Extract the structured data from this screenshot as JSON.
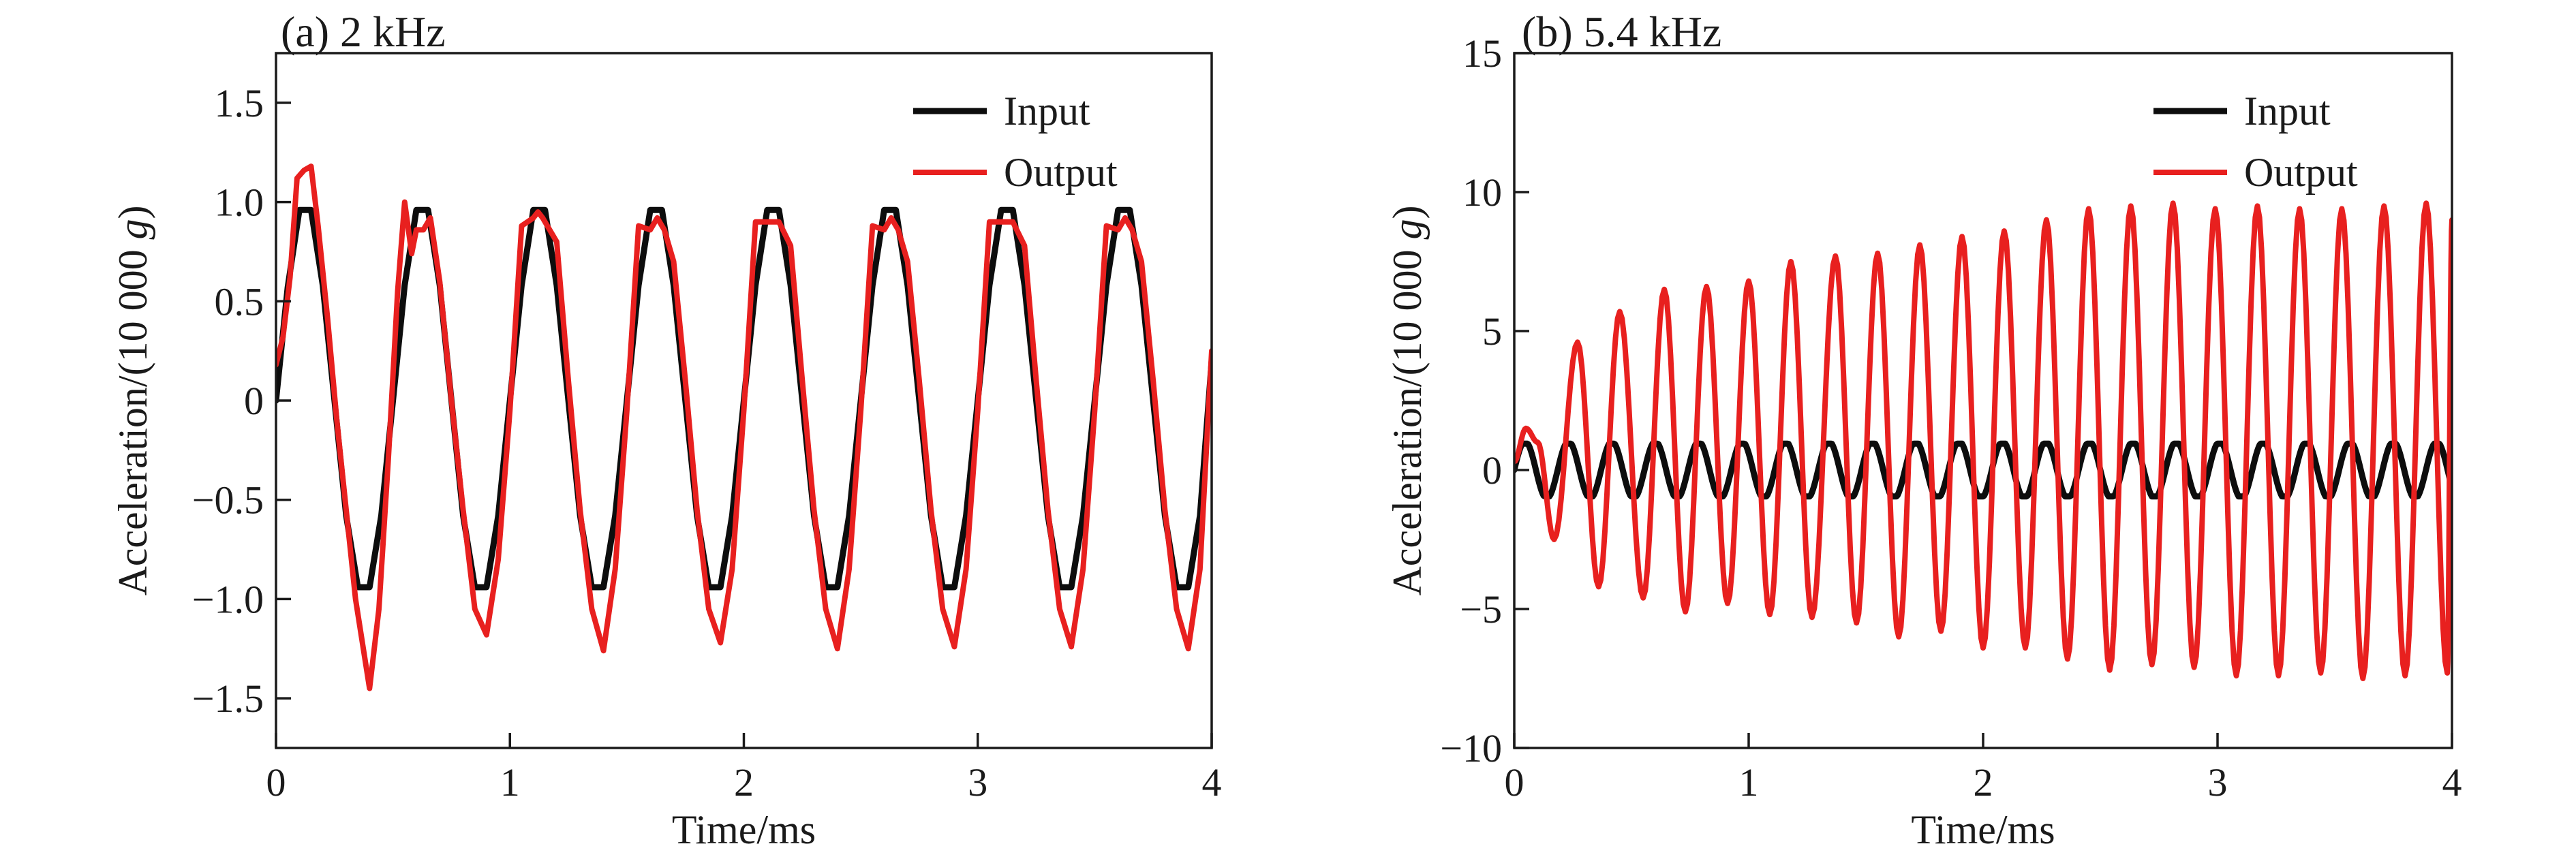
{
  "colors": {
    "input": "#0d0d0d",
    "output": "#e8201f",
    "axis": "#1a1a1a",
    "background": "#ffffff"
  },
  "chart_data": [
    {
      "type": "line",
      "title": "(a) 2 kHz",
      "xlabel": "Time/ms",
      "ylabel": "Acceleration/(10 000 g)",
      "ylabel_prefix": "Acceleration/(10 000 ",
      "ylabel_unit": "g",
      "ylabel_suffix": ")",
      "xlim": [
        0,
        4
      ],
      "ylim": [
        -1.75,
        1.75
      ],
      "xticks": [
        0,
        1,
        2,
        3,
        4
      ],
      "xtick_labels": [
        "0",
        "1",
        "2",
        "3",
        "4"
      ],
      "yticks": [
        -1.5,
        -1.0,
        -0.5,
        0,
        0.5,
        1.0,
        1.5
      ],
      "ytick_labels": [
        "−1.5",
        "−1.0",
        "−0.5",
        "0",
        "0.5",
        "1.0",
        "1.5"
      ],
      "legend_position": "top-right",
      "grid": false,
      "series": [
        {
          "name": "Input",
          "color": "#0d0d0d",
          "points": [
            [
              0.0,
              0.0
            ],
            [
              0.05,
              0.57
            ],
            [
              0.1,
              0.96
            ],
            [
              0.15,
              0.96
            ],
            [
              0.2,
              0.58
            ],
            [
              0.25,
              0.0
            ],
            [
              0.3,
              -0.58
            ],
            [
              0.35,
              -0.94
            ],
            [
              0.4,
              -0.94
            ],
            [
              0.45,
              -0.58
            ],
            [
              0.5,
              0.0
            ],
            [
              0.55,
              0.58
            ],
            [
              0.6,
              0.96
            ],
            [
              0.65,
              0.96
            ],
            [
              0.7,
              0.58
            ],
            [
              0.75,
              0.0
            ],
            [
              0.8,
              -0.58
            ],
            [
              0.85,
              -0.94
            ],
            [
              0.9,
              -0.94
            ],
            [
              0.95,
              -0.58
            ],
            [
              1.0,
              0.0
            ],
            [
              1.05,
              0.58
            ],
            [
              1.1,
              0.96
            ],
            [
              1.15,
              0.96
            ],
            [
              1.2,
              0.58
            ],
            [
              1.25,
              0.0
            ],
            [
              1.3,
              -0.58
            ],
            [
              1.35,
              -0.94
            ],
            [
              1.4,
              -0.94
            ],
            [
              1.45,
              -0.58
            ],
            [
              1.5,
              0.0
            ],
            [
              1.55,
              0.58
            ],
            [
              1.6,
              0.96
            ],
            [
              1.65,
              0.96
            ],
            [
              1.7,
              0.58
            ],
            [
              1.75,
              0.0
            ],
            [
              1.8,
              -0.58
            ],
            [
              1.85,
              -0.94
            ],
            [
              1.9,
              -0.94
            ],
            [
              1.95,
              -0.58
            ],
            [
              2.0,
              0.0
            ],
            [
              2.05,
              0.58
            ],
            [
              2.1,
              0.96
            ],
            [
              2.15,
              0.96
            ],
            [
              2.2,
              0.58
            ],
            [
              2.25,
              0.0
            ],
            [
              2.3,
              -0.58
            ],
            [
              2.35,
              -0.94
            ],
            [
              2.4,
              -0.94
            ],
            [
              2.45,
              -0.58
            ],
            [
              2.5,
              0.0
            ],
            [
              2.55,
              0.58
            ],
            [
              2.6,
              0.96
            ],
            [
              2.65,
              0.96
            ],
            [
              2.7,
              0.58
            ],
            [
              2.75,
              0.0
            ],
            [
              2.8,
              -0.58
            ],
            [
              2.85,
              -0.94
            ],
            [
              2.9,
              -0.94
            ],
            [
              2.95,
              -0.58
            ],
            [
              3.0,
              0.0
            ],
            [
              3.05,
              0.58
            ],
            [
              3.1,
              0.96
            ],
            [
              3.15,
              0.96
            ],
            [
              3.2,
              0.58
            ],
            [
              3.25,
              0.0
            ],
            [
              3.3,
              -0.58
            ],
            [
              3.35,
              -0.94
            ],
            [
              3.4,
              -0.94
            ],
            [
              3.45,
              -0.58
            ],
            [
              3.5,
              0.0
            ],
            [
              3.55,
              0.58
            ],
            [
              3.6,
              0.96
            ],
            [
              3.65,
              0.96
            ],
            [
              3.7,
              0.58
            ],
            [
              3.75,
              0.0
            ],
            [
              3.8,
              -0.58
            ],
            [
              3.85,
              -0.94
            ],
            [
              3.9,
              -0.94
            ],
            [
              3.95,
              -0.58
            ],
            [
              4.0,
              0.2
            ]
          ]
        },
        {
          "name": "Output",
          "color": "#e8201f",
          "points": [
            [
              0.0,
              0.18
            ],
            [
              0.03,
              0.32
            ],
            [
              0.06,
              0.62
            ],
            [
              0.09,
              1.12
            ],
            [
              0.12,
              1.16
            ],
            [
              0.15,
              1.18
            ],
            [
              0.18,
              0.88
            ],
            [
              0.22,
              0.42
            ],
            [
              0.26,
              -0.1
            ],
            [
              0.3,
              -0.55
            ],
            [
              0.34,
              -1.0
            ],
            [
              0.4,
              -1.45
            ],
            [
              0.44,
              -1.05
            ],
            [
              0.48,
              -0.3
            ],
            [
              0.52,
              0.55
            ],
            [
              0.55,
              1.0
            ],
            [
              0.58,
              0.74
            ],
            [
              0.6,
              0.86
            ],
            [
              0.63,
              0.86
            ],
            [
              0.66,
              0.92
            ],
            [
              0.7,
              0.6
            ],
            [
              0.75,
              0.0
            ],
            [
              0.8,
              -0.55
            ],
            [
              0.85,
              -1.05
            ],
            [
              0.9,
              -1.18
            ],
            [
              0.95,
              -0.8
            ],
            [
              1.0,
              -0.05
            ],
            [
              1.05,
              0.88
            ],
            [
              1.1,
              0.92
            ],
            [
              1.12,
              0.95
            ],
            [
              1.14,
              0.92
            ],
            [
              1.2,
              0.8
            ],
            [
              1.25,
              0.1
            ],
            [
              1.3,
              -0.55
            ],
            [
              1.35,
              -1.05
            ],
            [
              1.4,
              -1.26
            ],
            [
              1.45,
              -0.85
            ],
            [
              1.5,
              -0.05
            ],
            [
              1.55,
              0.88
            ],
            [
              1.6,
              0.86
            ],
            [
              1.63,
              0.92
            ],
            [
              1.66,
              0.86
            ],
            [
              1.7,
              0.7
            ],
            [
              1.75,
              0.1
            ],
            [
              1.8,
              -0.55
            ],
            [
              1.85,
              -1.05
            ],
            [
              1.9,
              -1.22
            ],
            [
              1.95,
              -0.85
            ],
            [
              2.0,
              -0.05
            ],
            [
              2.05,
              0.9
            ],
            [
              2.1,
              0.9
            ],
            [
              2.15,
              0.9
            ],
            [
              2.2,
              0.78
            ],
            [
              2.25,
              0.1
            ],
            [
              2.3,
              -0.55
            ],
            [
              2.35,
              -1.05
            ],
            [
              2.4,
              -1.25
            ],
            [
              2.45,
              -0.85
            ],
            [
              2.5,
              -0.05
            ],
            [
              2.55,
              0.88
            ],
            [
              2.6,
              0.86
            ],
            [
              2.63,
              0.92
            ],
            [
              2.66,
              0.86
            ],
            [
              2.7,
              0.7
            ],
            [
              2.75,
              0.1
            ],
            [
              2.8,
              -0.55
            ],
            [
              2.85,
              -1.05
            ],
            [
              2.9,
              -1.24
            ],
            [
              2.95,
              -0.85
            ],
            [
              3.0,
              -0.05
            ],
            [
              3.05,
              0.9
            ],
            [
              3.1,
              0.9
            ],
            [
              3.15,
              0.9
            ],
            [
              3.2,
              0.78
            ],
            [
              3.25,
              0.1
            ],
            [
              3.3,
              -0.55
            ],
            [
              3.35,
              -1.05
            ],
            [
              3.4,
              -1.24
            ],
            [
              3.45,
              -0.85
            ],
            [
              3.5,
              -0.05
            ],
            [
              3.55,
              0.88
            ],
            [
              3.6,
              0.86
            ],
            [
              3.63,
              0.92
            ],
            [
              3.66,
              0.86
            ],
            [
              3.7,
              0.7
            ],
            [
              3.75,
              0.1
            ],
            [
              3.8,
              -0.55
            ],
            [
              3.85,
              -1.05
            ],
            [
              3.9,
              -1.25
            ],
            [
              3.95,
              -0.85
            ],
            [
              4.0,
              0.25
            ]
          ]
        }
      ]
    },
    {
      "type": "line",
      "title": "(b) 5.4 kHz",
      "xlabel": "Time/ms",
      "ylabel": "Acceleration/(10 000 g)",
      "ylabel_prefix": "Acceleration/(10 000 ",
      "ylabel_unit": "g",
      "ylabel_suffix": ")",
      "xlim": [
        0,
        4
      ],
      "ylim": [
        -10,
        15
      ],
      "xticks": [
        0,
        1,
        2,
        3,
        4
      ],
      "xtick_labels": [
        "0",
        "1",
        "2",
        "3",
        "4"
      ],
      "yticks": [
        -10,
        -5,
        0,
        5,
        10,
        15
      ],
      "ytick_labels": [
        "−10",
        "−5",
        "0",
        "5",
        "10",
        "15"
      ],
      "legend_position": "top-right",
      "grid": false,
      "series": [
        {
          "name": "Input",
          "color": "#0d0d0d",
          "frequency_khz": 5.4,
          "amplitude": 0.95
        },
        {
          "name": "Output",
          "color": "#e8201f",
          "peaks": [
            [
              0.0,
              0.3
            ],
            [
              0.05,
              1.5
            ],
            [
              0.1,
              1.0
            ],
            [
              0.17,
              -2.5
            ],
            [
              0.27,
              4.6
            ],
            [
              0.36,
              -4.2
            ],
            [
              0.45,
              5.7
            ],
            [
              0.55,
              -4.6
            ],
            [
              0.64,
              6.5
            ],
            [
              0.73,
              -5.1
            ],
            [
              0.82,
              6.6
            ],
            [
              0.91,
              -4.8
            ],
            [
              1.0,
              6.8
            ],
            [
              1.09,
              -5.2
            ],
            [
              1.18,
              7.5
            ],
            [
              1.27,
              -5.3
            ],
            [
              1.37,
              7.7
            ],
            [
              1.46,
              -5.5
            ],
            [
              1.55,
              7.8
            ],
            [
              1.64,
              -6.0
            ],
            [
              1.73,
              8.1
            ],
            [
              1.82,
              -5.8
            ],
            [
              1.91,
              8.4
            ],
            [
              2.0,
              -6.4
            ],
            [
              2.09,
              8.6
            ],
            [
              2.18,
              -6.4
            ],
            [
              2.27,
              9.0
            ],
            [
              2.36,
              -6.8
            ],
            [
              2.45,
              9.4
            ],
            [
              2.54,
              -7.2
            ],
            [
              2.63,
              9.5
            ],
            [
              2.72,
              -7.0
            ],
            [
              2.81,
              9.6
            ],
            [
              2.9,
              -7.1
            ],
            [
              2.99,
              9.4
            ],
            [
              3.08,
              -7.4
            ],
            [
              3.17,
              9.5
            ],
            [
              3.26,
              -7.4
            ],
            [
              3.35,
              9.4
            ],
            [
              3.44,
              -7.3
            ],
            [
              3.53,
              9.4
            ],
            [
              3.62,
              -7.5
            ],
            [
              3.71,
              9.5
            ],
            [
              3.8,
              -7.4
            ],
            [
              3.89,
              9.6
            ],
            [
              3.98,
              -7.3
            ],
            [
              4.0,
              9.0
            ]
          ]
        }
      ]
    }
  ]
}
